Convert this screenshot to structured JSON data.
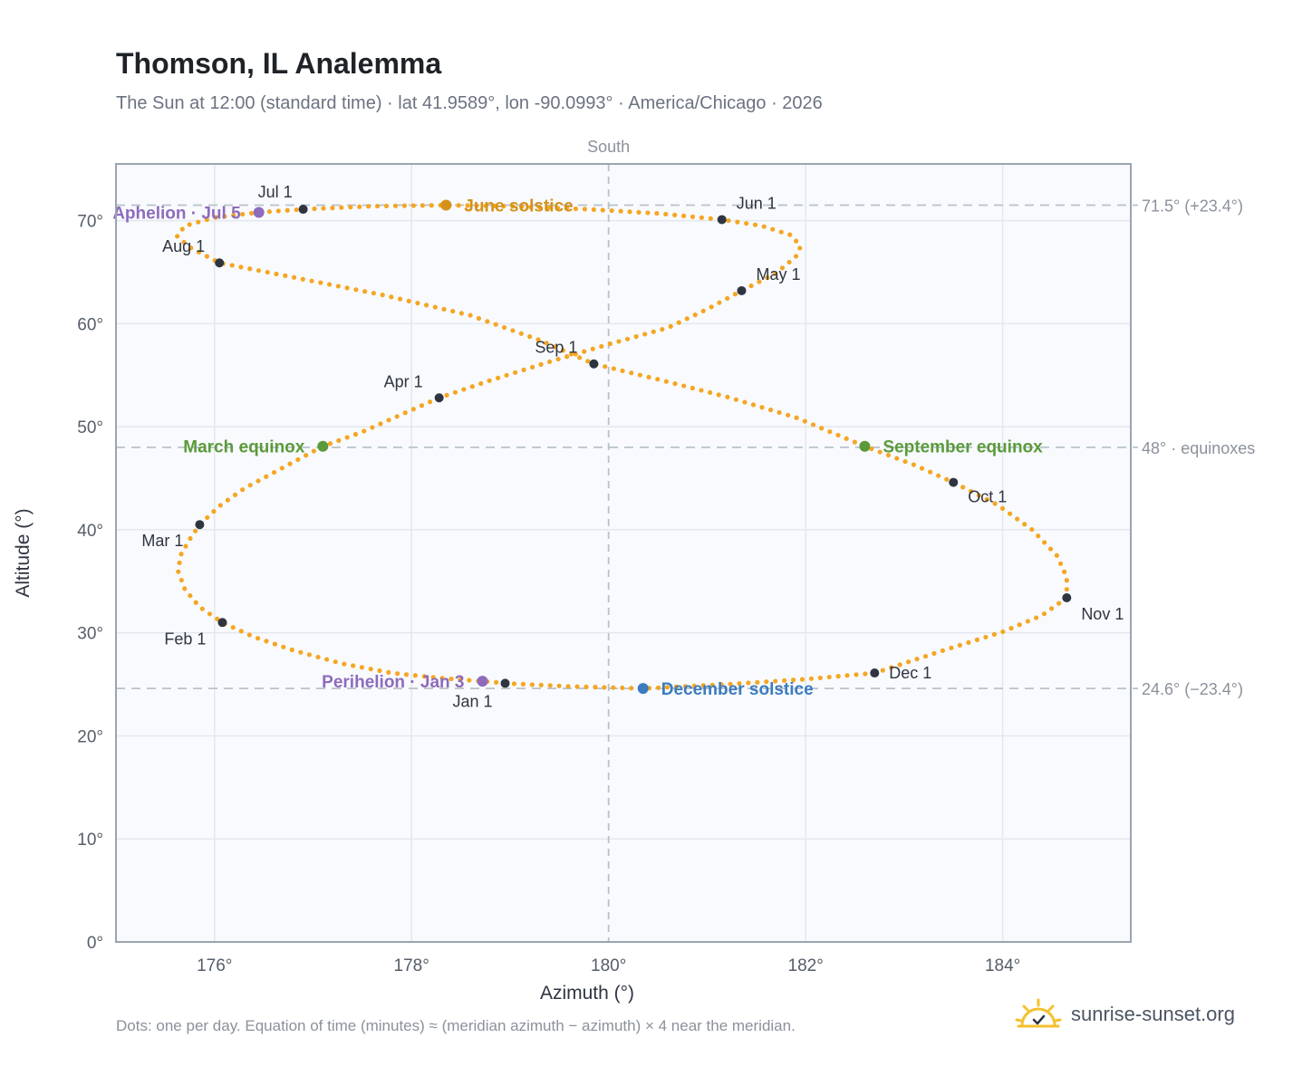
{
  "header": {
    "title": "Thomson, IL Analemma",
    "subtitle": "The Sun at 12:00 (standard time) · lat 41.9589°, lon -90.0993° · America/Chicago · 2026"
  },
  "footer": {
    "note": "Dots: one per day. Equation of time (minutes) ≈ (meridian azimuth − azimuth) × 4 near the meridian.",
    "brand": "sunrise-sunset.org"
  },
  "colors": {
    "curve": "#f5a623",
    "month_dot": "#2f3540",
    "solstice_june": "#d4921a",
    "solstice_december": "#3b7bbf",
    "equinox": "#5a9a3a",
    "apsis": "#8e6bbd",
    "reference_line": "#b8c2cc",
    "plot_bg": "#f8fafd",
    "grid": "#e3e8ee"
  },
  "chart_data": {
    "type": "scatter",
    "title": "Thomson, IL Analemma",
    "xlabel": "Azimuth (°)",
    "ylabel": "Altitude (°)",
    "xlim": [
      175.0,
      185.3
    ],
    "ylim": [
      0,
      75.5
    ],
    "grid": true,
    "xticks": [
      176,
      178,
      180,
      182,
      184
    ],
    "yticks": [
      0,
      10,
      20,
      30,
      40,
      50,
      60,
      70
    ],
    "tick_suffix": "°",
    "top_label": "South",
    "meridian_azimuth": 180,
    "reference_lines": [
      {
        "altitude": 71.5,
        "label": "71.5° (+23.4°)"
      },
      {
        "altitude": 48.0,
        "label": "48° · equinoxes"
      },
      {
        "altitude": 24.6,
        "label": "24.6° (−23.4°)"
      }
    ],
    "month_markers": [
      {
        "label": "Jan 1",
        "az": 178.95,
        "alt": 25.1
      },
      {
        "label": "Feb 1",
        "az": 176.08,
        "alt": 31.0
      },
      {
        "label": "Mar 1",
        "az": 175.85,
        "alt": 40.5
      },
      {
        "label": "Apr 1",
        "az": 178.28,
        "alt": 52.8
      },
      {
        "label": "May 1",
        "az": 181.35,
        "alt": 63.2
      },
      {
        "label": "Jun 1",
        "az": 181.15,
        "alt": 70.1
      },
      {
        "label": "Jul 1",
        "az": 176.9,
        "alt": 71.1
      },
      {
        "label": "Aug 1",
        "az": 176.05,
        "alt": 65.9
      },
      {
        "label": "Sep 1",
        "az": 179.85,
        "alt": 56.1
      },
      {
        "label": "Oct 1",
        "az": 183.5,
        "alt": 44.6
      },
      {
        "label": "Nov 1",
        "az": 184.65,
        "alt": 33.4
      },
      {
        "label": "Dec 1",
        "az": 182.7,
        "alt": 26.1
      }
    ],
    "events": [
      {
        "label": "June solstice",
        "az": 178.35,
        "alt": 71.5,
        "kind": "solstice_june"
      },
      {
        "label": "December solstice",
        "az": 180.35,
        "alt": 24.6,
        "kind": "solstice_december"
      },
      {
        "label": "March equinox",
        "az": 177.1,
        "alt": 48.1,
        "kind": "equinox"
      },
      {
        "label": "September equinox",
        "az": 182.6,
        "alt": 48.1,
        "kind": "equinox"
      },
      {
        "label": "Aphelion · Jul 5",
        "az": 176.45,
        "alt": 70.8,
        "kind": "apsis"
      },
      {
        "label": "Perihelion · Jan 3",
        "az": 178.72,
        "alt": 25.3,
        "kind": "apsis"
      }
    ],
    "series": [
      {
        "name": "",
        "points": [
          [
            178.95,
            25.1
          ],
          [
            178.85,
            25.2
          ],
          [
            178.72,
            25.3
          ],
          [
            178.3,
            25.6
          ],
          [
            177.8,
            26.1
          ],
          [
            177.3,
            27.0
          ],
          [
            176.8,
            28.3
          ],
          [
            176.4,
            29.6
          ],
          [
            176.08,
            31.0
          ],
          [
            175.85,
            32.5
          ],
          [
            175.7,
            34.2
          ],
          [
            175.63,
            36.0
          ],
          [
            175.66,
            37.6
          ],
          [
            175.75,
            39.1
          ],
          [
            175.85,
            40.5
          ],
          [
            176.05,
            42.3
          ],
          [
            176.3,
            44.0
          ],
          [
            176.65,
            45.8
          ],
          [
            177.1,
            48.1
          ],
          [
            177.5,
            49.5
          ],
          [
            177.9,
            51.2
          ],
          [
            178.28,
            52.8
          ],
          [
            178.8,
            54.5
          ],
          [
            179.4,
            56.3
          ],
          [
            180.0,
            58.0
          ],
          [
            180.6,
            59.6
          ],
          [
            181.0,
            61.4
          ],
          [
            181.35,
            63.2
          ],
          [
            181.7,
            64.9
          ],
          [
            181.9,
            66.5
          ],
          [
            181.95,
            67.5
          ],
          [
            181.85,
            68.6
          ],
          [
            181.55,
            69.5
          ],
          [
            181.15,
            70.1
          ],
          [
            180.5,
            70.7
          ],
          [
            179.8,
            71.1
          ],
          [
            179.0,
            71.4
          ],
          [
            178.35,
            71.5
          ],
          [
            177.6,
            71.4
          ],
          [
            176.9,
            71.1
          ],
          [
            176.45,
            70.8
          ],
          [
            176.0,
            70.3
          ],
          [
            175.7,
            69.5
          ],
          [
            175.62,
            68.5
          ],
          [
            175.75,
            67.4
          ],
          [
            176.05,
            65.9
          ],
          [
            176.8,
            64.5
          ],
          [
            177.7,
            62.8
          ],
          [
            178.6,
            60.8
          ],
          [
            179.3,
            58.4
          ],
          [
            179.85,
            56.1
          ],
          [
            180.5,
            54.6
          ],
          [
            181.2,
            52.9
          ],
          [
            181.9,
            50.9
          ],
          [
            182.6,
            48.1
          ],
          [
            183.1,
            46.3
          ],
          [
            183.5,
            44.6
          ],
          [
            183.95,
            42.4
          ],
          [
            184.3,
            40.0
          ],
          [
            184.55,
            37.5
          ],
          [
            184.65,
            35.4
          ],
          [
            184.65,
            33.4
          ],
          [
            184.4,
            31.7
          ],
          [
            184.0,
            30.1
          ],
          [
            183.4,
            28.3
          ],
          [
            182.7,
            26.1
          ],
          [
            182.0,
            25.5
          ],
          [
            181.2,
            25.0
          ],
          [
            180.35,
            24.6
          ],
          [
            179.6,
            24.8
          ],
          [
            178.95,
            25.1
          ]
        ]
      }
    ]
  }
}
